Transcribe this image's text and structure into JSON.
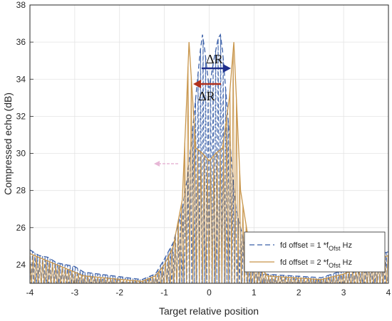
{
  "chart_data": {
    "type": "line",
    "xlabel": "Target relative position",
    "ylabel": "Compressed echo (dB)",
    "xlim": [
      -4,
      4
    ],
    "ylim": [
      23,
      38
    ],
    "xticks": [
      "-4",
      "-3",
      "-2",
      "-1",
      "0",
      "1",
      "2",
      "3",
      "4"
    ],
    "yticks": [
      "24",
      "26",
      "28",
      "30",
      "32",
      "34",
      "36",
      "38"
    ],
    "grid": true,
    "legend_position": "bottom-right",
    "series": [
      {
        "name": "fd offset = 1 *f",
        "subscript": "Ofst",
        "unit": " Hz",
        "color": "#3a5fa8",
        "style": "dashed",
        "main_peaks": [
          {
            "x": -0.15,
            "y": 36.4
          },
          {
            "x": 0.25,
            "y": 36.4
          }
        ],
        "x": [
          -4.0,
          -3.8,
          -3.6,
          -3.4,
          -3.2,
          -3.0,
          -2.8,
          -1.5,
          -1.2,
          -1.0,
          -0.8,
          -0.6,
          -0.5,
          -0.4,
          -0.3,
          -0.2,
          -0.15,
          -0.1,
          0.0,
          0.1,
          0.2,
          0.25,
          0.3,
          0.4,
          0.5,
          0.6,
          0.8,
          1.0,
          1.2,
          2.5,
          3.0,
          3.5,
          4.0
        ],
        "y": [
          24.8,
          24.5,
          24.4,
          24.1,
          24.0,
          23.9,
          23.6,
          23.2,
          23.5,
          24.3,
          25.2,
          27.0,
          28.5,
          30.5,
          33.0,
          35.5,
          36.4,
          35.6,
          33.5,
          35.0,
          36.2,
          36.4,
          35.5,
          32.5,
          29.5,
          27.0,
          25.0,
          24.0,
          23.5,
          23.3,
          23.7,
          24.3,
          24.7
        ]
      },
      {
        "name": "fd offset = 2 *f",
        "subscript": "Ofst",
        "unit": " Hz",
        "color": "#c8954a",
        "style": "solid",
        "main_peaks": [
          {
            "x": -0.45,
            "y": 36.0
          },
          {
            "x": 0.55,
            "y": 36.0
          }
        ],
        "x": [
          -4.0,
          -3.8,
          -3.6,
          -3.4,
          -3.2,
          -3.0,
          -2.8,
          -1.5,
          -1.2,
          -1.0,
          -0.8,
          -0.6,
          -0.5,
          -0.45,
          -0.3,
          -0.15,
          0.0,
          0.15,
          0.3,
          0.45,
          0.55,
          0.7,
          0.9,
          1.1,
          1.3,
          2.5,
          3.0,
          3.5,
          4.0
        ],
        "y": [
          24.6,
          24.4,
          24.2,
          24.0,
          23.8,
          23.6,
          23.4,
          23.1,
          23.4,
          24.0,
          25.0,
          27.5,
          33.0,
          36.0,
          30.3,
          30.0,
          29.6,
          30.0,
          30.3,
          33.0,
          36.0,
          28.0,
          25.0,
          24.0,
          23.4,
          23.2,
          23.5,
          24.0,
          24.5
        ]
      }
    ],
    "annotations": [
      {
        "text": "ΔR",
        "direction": "right",
        "color": "#1f2f8c"
      },
      {
        "text": "ΔR",
        "direction": "left",
        "color": "#b0301c"
      }
    ]
  }
}
